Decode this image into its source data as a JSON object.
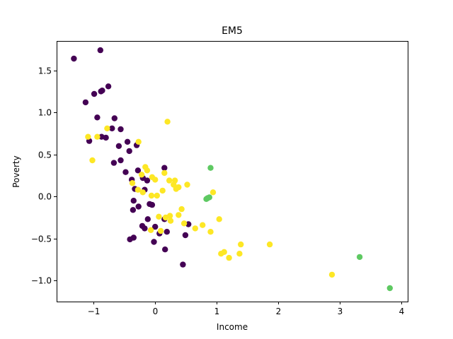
{
  "chart_data": {
    "type": "scatter",
    "title": "EM5",
    "xlabel": "Income",
    "ylabel": "Poverty",
    "xlim": [
      -1.6,
      4.1
    ],
    "ylim": [
      -1.25,
      1.85
    ],
    "xticks": [
      -1,
      0,
      1,
      2,
      3,
      4
    ],
    "xtick_labels": [
      "−1",
      "0",
      "1",
      "2",
      "3",
      "4"
    ],
    "yticks": [
      -1.0,
      -0.5,
      0.0,
      0.5,
      1.0,
      1.5
    ],
    "ytick_labels": [
      "−1.0",
      "−0.5",
      "0.0",
      "0.5",
      "1.0",
      "1.5"
    ],
    "grid": false,
    "legend": "none",
    "series": [
      {
        "color": "#440154",
        "points": [
          [
            -1.32,
            1.64
          ],
          [
            -0.89,
            1.74
          ],
          [
            -1.13,
            1.12
          ],
          [
            -0.99,
            1.22
          ],
          [
            -0.88,
            1.25
          ],
          [
            -0.86,
            1.26
          ],
          [
            -0.76,
            1.31
          ],
          [
            -0.94,
            0.94
          ],
          [
            -0.66,
            0.93
          ],
          [
            -0.7,
            0.81
          ],
          [
            -0.56,
            0.8
          ],
          [
            -0.87,
            0.71
          ],
          [
            -0.8,
            0.7
          ],
          [
            -1.07,
            0.66
          ],
          [
            -0.45,
            0.65
          ],
          [
            -0.59,
            0.6
          ],
          [
            -0.3,
            0.61
          ],
          [
            -0.42,
            0.54
          ],
          [
            -0.56,
            0.43
          ],
          [
            -0.67,
            0.4
          ],
          [
            -0.28,
            0.31
          ],
          [
            -0.48,
            0.29
          ],
          [
            0.15,
            0.34
          ],
          [
            -0.2,
            0.22
          ],
          [
            -0.38,
            0.2
          ],
          [
            -0.13,
            0.19
          ],
          [
            -0.33,
            0.09
          ],
          [
            -0.17,
            0.08
          ],
          [
            -0.35,
            -0.05
          ],
          [
            -0.27,
            -0.12
          ],
          [
            -0.09,
            -0.09
          ],
          [
            -0.05,
            -0.1
          ],
          [
            -0.36,
            -0.16
          ],
          [
            -0.12,
            -0.27
          ],
          [
            0.15,
            -0.27
          ],
          [
            0.54,
            -0.33
          ],
          [
            -0.21,
            -0.35
          ],
          [
            -0.17,
            -0.38
          ],
          [
            0.0,
            -0.36
          ],
          [
            0.19,
            -0.42
          ],
          [
            0.07,
            -0.44
          ],
          [
            0.49,
            -0.46
          ],
          [
            -0.35,
            -0.49
          ],
          [
            -0.41,
            -0.51
          ],
          [
            -0.02,
            -0.54
          ],
          [
            0.16,
            -0.63
          ],
          [
            0.45,
            -0.81
          ]
        ]
      },
      {
        "color": "#fde725",
        "points": [
          [
            0.2,
            0.89
          ],
          [
            -0.78,
            0.81
          ],
          [
            -1.09,
            0.71
          ],
          [
            -0.94,
            0.71
          ],
          [
            -0.27,
            0.65
          ],
          [
            -1.02,
            0.43
          ],
          [
            -0.16,
            0.35
          ],
          [
            -0.13,
            0.31
          ],
          [
            0.15,
            0.28
          ],
          [
            -0.22,
            0.26
          ],
          [
            -0.05,
            0.23
          ],
          [
            0.0,
            0.2
          ],
          [
            0.23,
            0.19
          ],
          [
            0.32,
            0.19
          ],
          [
            -0.37,
            0.16
          ],
          [
            0.3,
            0.14
          ],
          [
            0.52,
            0.14
          ],
          [
            0.38,
            0.11
          ],
          [
            0.34,
            0.09
          ],
          [
            -0.28,
            0.08
          ],
          [
            0.12,
            0.07
          ],
          [
            -0.2,
            0.05
          ],
          [
            0.94,
            0.05
          ],
          [
            -0.06,
            0.01
          ],
          [
            0.03,
            0.01
          ],
          [
            0.43,
            -0.15
          ],
          [
            0.24,
            -0.23
          ],
          [
            0.06,
            -0.24
          ],
          [
            0.17,
            -0.25
          ],
          [
            0.25,
            -0.29
          ],
          [
            0.38,
            -0.22
          ],
          [
            1.04,
            -0.27
          ],
          [
            0.47,
            -0.32
          ],
          [
            0.77,
            -0.34
          ],
          [
            0.65,
            -0.38
          ],
          [
            -0.07,
            -0.4
          ],
          [
            0.09,
            -0.41
          ],
          [
            0.9,
            -0.42
          ],
          [
            1.39,
            -0.57
          ],
          [
            1.86,
            -0.57
          ],
          [
            1.12,
            -0.66
          ],
          [
            1.07,
            -0.68
          ],
          [
            1.37,
            -0.68
          ],
          [
            1.2,
            -0.73
          ],
          [
            2.87,
            -0.93
          ]
        ]
      },
      {
        "color": "#5ec962",
        "points": [
          [
            0.9,
            0.34
          ],
          [
            0.85,
            -0.02
          ],
          [
            0.88,
            -0.01
          ],
          [
            0.83,
            -0.03
          ],
          [
            3.32,
            -0.72
          ],
          [
            3.81,
            -1.09
          ]
        ]
      }
    ]
  }
}
